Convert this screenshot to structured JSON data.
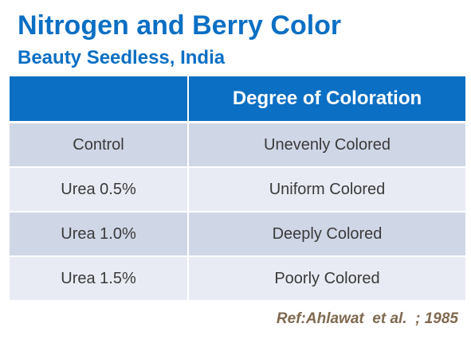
{
  "title": "Nitrogen and Berry Color",
  "subtitle": "Beauty Seedless, India",
  "table": {
    "headers": [
      "",
      "Degree of Coloration"
    ],
    "rows": [
      [
        "Control",
        "Unevenly Colored"
      ],
      [
        "Urea 0.5%",
        "Uniform Colored"
      ],
      [
        "Urea 1.0%",
        "Deeply Colored"
      ],
      [
        "Urea 1.5%",
        "Poorly Colored"
      ]
    ]
  },
  "reference": "Ref:Ahlawat  et al.  ; 1985",
  "colors": {
    "title": "#0b6fc4",
    "header_bg": "#0b6fc4",
    "row_dark": "#cfd6e6",
    "row_light": "#e8ebf3",
    "reference": "#7f6a4f"
  }
}
